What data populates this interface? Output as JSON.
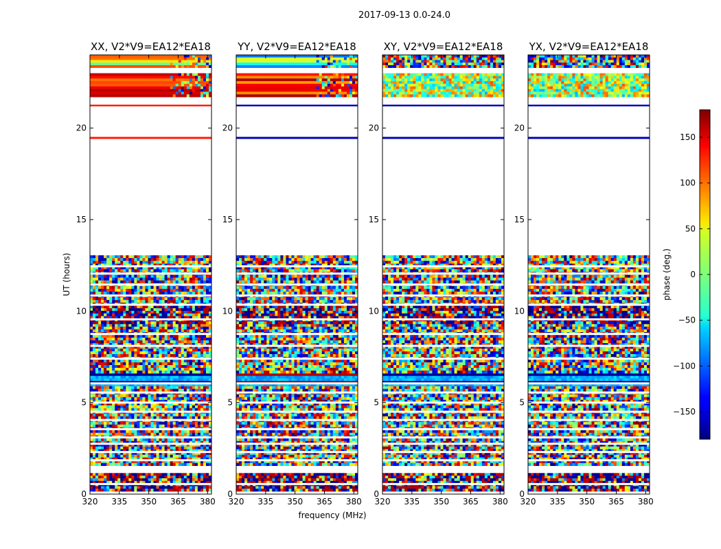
{
  "chart_data": {
    "type": "heatmap",
    "title": "2017-09-13 0.0-24.0",
    "xlabel": "frequency (MHz)",
    "ylabel": "UT (hours)",
    "xlim": [
      320,
      382
    ],
    "ylim": [
      0,
      24
    ],
    "xticks": [
      320,
      335,
      350,
      365,
      380
    ],
    "yticks": [
      0,
      5,
      10,
      15,
      20
    ],
    "panels": [
      {
        "name": "XX, V2*V9=EA12*EA18"
      },
      {
        "name": "YY, V2*V9=EA12*EA18"
      },
      {
        "name": "XY, V2*V9=EA12*EA18"
      },
      {
        "name": "YX, V2*V9=EA12*EA18"
      }
    ],
    "colorbar": {
      "label": "phase (deg.)",
      "range": [
        -180,
        180
      ],
      "ticks": [
        -150,
        -100,
        -50,
        0,
        50,
        100,
        150
      ],
      "colormap": "jet"
    },
    "data_rows": [
      {
        "t0": 0.15,
        "t1": 1.15,
        "pattern": "noise_dark"
      },
      {
        "t0": 1.55,
        "t1": 5.9,
        "pattern": "noise"
      },
      {
        "t0": 5.9,
        "t1": 6.6,
        "pattern": "band_blue"
      },
      {
        "t0": 6.6,
        "t1": 9.3,
        "pattern": "noise"
      },
      {
        "t0": 9.3,
        "t1": 10.3,
        "pattern": "band_mix"
      },
      {
        "t0": 10.3,
        "t1": 13.05,
        "pattern": "noise"
      },
      {
        "t0": 19.42,
        "t1": 19.52,
        "pattern": "line"
      },
      {
        "t0": 21.2,
        "t1": 21.28,
        "pattern": "line"
      },
      {
        "t0": 21.7,
        "t1": 23.0,
        "pattern": "band_upper"
      },
      {
        "t0": 23.3,
        "t1": 24.0,
        "pattern": "band_top"
      }
    ],
    "gap_rows": [
      0.55,
      1.85,
      2.3,
      2.75,
      3.1,
      3.55,
      4.05,
      4.5,
      5.0,
      5.55,
      6.05,
      7.4,
      8.1,
      8.75,
      9.55,
      10.35,
      10.85,
      11.45,
      12.05,
      12.45
    ]
  }
}
